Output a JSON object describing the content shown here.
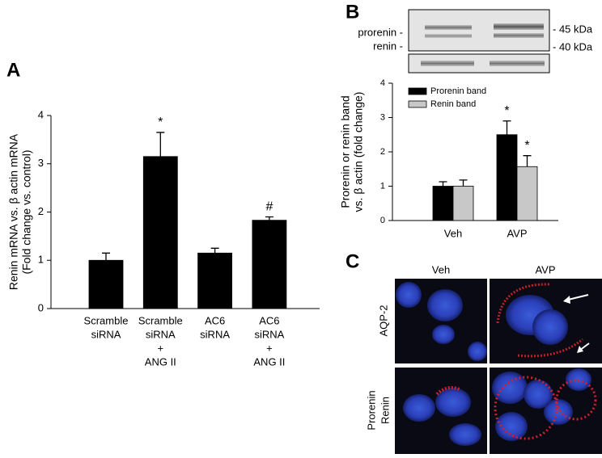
{
  "panels": [
    "A",
    "B",
    "C"
  ],
  "blot": {
    "labels": [
      "prorenin -",
      "renin -"
    ],
    "markers": [
      "- 45 kDa",
      "- 40 kDa"
    ]
  },
  "microscopy": {
    "columns": [
      "Veh",
      "AVP"
    ],
    "rows": [
      [
        "AQP-2"
      ],
      [
        "Prorenin",
        "Renin"
      ]
    ]
  },
  "chart_data": [
    {
      "type": "bar",
      "ylabel": [
        "Renin mRNA vs. β actin mRNA",
        "(Fold change vs. control)"
      ],
      "categories": [
        [
          "Scramble",
          "siRNA"
        ],
        [
          "Scramble",
          "siRNA",
          "+",
          "ANG II"
        ],
        [
          "AC6",
          "siRNA"
        ],
        [
          "AC6",
          "siRNA",
          "+",
          "ANG II"
        ]
      ],
      "values": [
        1.0,
        3.15,
        1.15,
        1.83
      ],
      "errors": [
        0.15,
        0.5,
        0.1,
        0.07
      ],
      "annotations": [
        null,
        "*",
        null,
        "#"
      ],
      "color": "#000000",
      "ylim": [
        0,
        4
      ],
      "yticks": [
        0,
        1,
        2,
        3,
        4
      ]
    },
    {
      "type": "bar",
      "ylabel": [
        "Prorenin or renin band",
        "vs. β actin (fold change)"
      ],
      "categories": [
        "Veh",
        "AVP"
      ],
      "series": [
        {
          "name": "Prorenin band",
          "color": "#000000",
          "values": [
            1.0,
            2.5
          ],
          "errors": [
            0.13,
            0.4
          ],
          "annotations": [
            null,
            "*"
          ]
        },
        {
          "name": "Renin band",
          "color": "#c8c8c8",
          "values": [
            1.0,
            1.57
          ],
          "errors": [
            0.18,
            0.32
          ],
          "annotations": [
            null,
            "*"
          ]
        }
      ],
      "legend": "upper left",
      "ylim": [
        0,
        4
      ],
      "yticks": [
        0,
        1,
        2,
        3,
        4
      ]
    }
  ]
}
